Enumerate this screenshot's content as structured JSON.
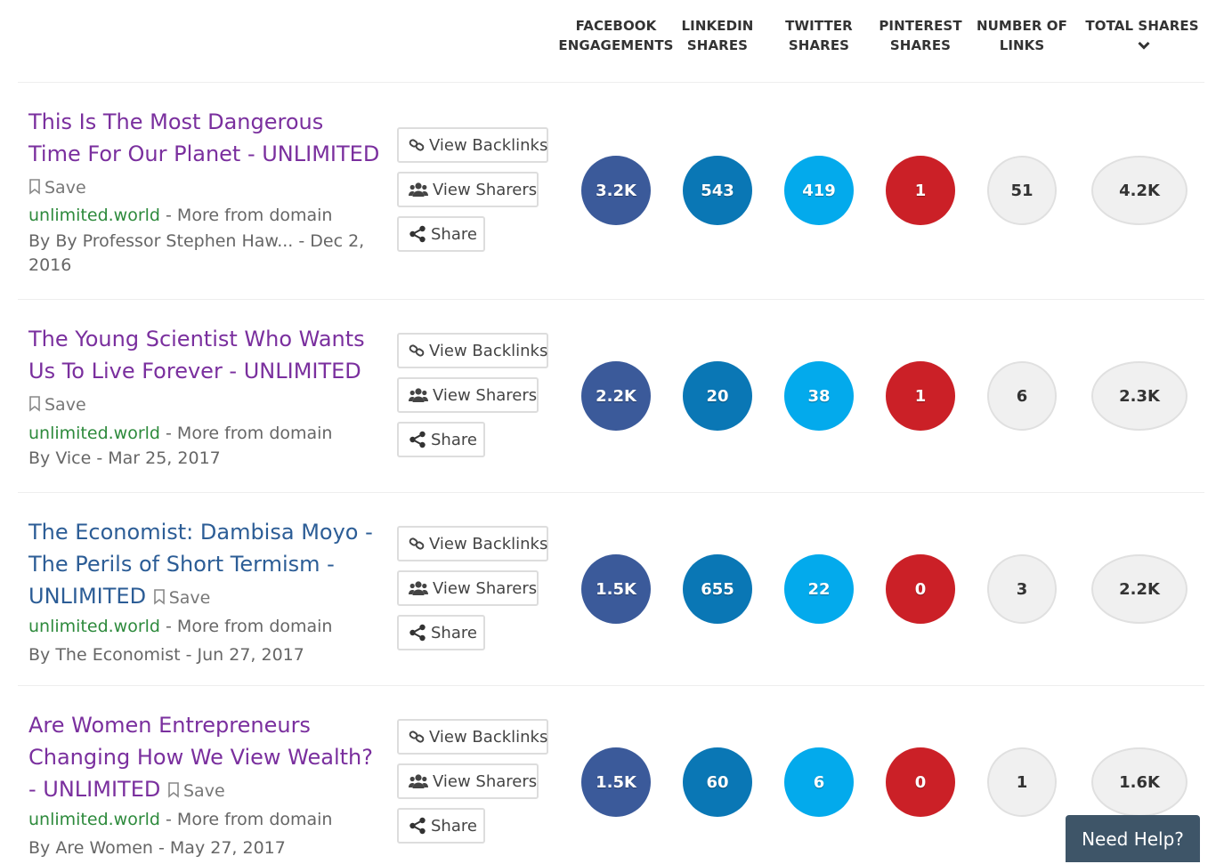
{
  "colors": {
    "facebook": "#3b5a9a",
    "linkedin": "#0a77b5",
    "twitter": "#03aaec",
    "pinterest": "#cb2027",
    "links": "#f0f0f0",
    "total": "#f0f0f0"
  },
  "columns": [
    {
      "key": "facebook",
      "line1": "FACEBOOK",
      "line2": "ENGAGEMENTS"
    },
    {
      "key": "linkedin",
      "line1": "LINKEDIN",
      "line2": "SHARES"
    },
    {
      "key": "twitter",
      "line1": "TWITTER",
      "line2": "SHARES"
    },
    {
      "key": "pinterest",
      "line1": "PINTEREST",
      "line2": "SHARES"
    },
    {
      "key": "links",
      "line1": "NUMBER OF",
      "line2": "LINKS"
    },
    {
      "key": "total",
      "line1": "TOTAL SHARES",
      "line2": "",
      "icon": "chevron-down-icon"
    }
  ],
  "labels": {
    "save": "Save",
    "more_from_domain": "More from domain",
    "view_backlinks": "View Backlinks",
    "view_sharers": "View Sharers",
    "share": "Share",
    "need_help": "Need Help?"
  },
  "icons": {
    "save": "bookmark-icon",
    "view_backlinks": "link-icon",
    "view_sharers": "users-icon",
    "share": "share-icon"
  },
  "articles": [
    {
      "title": "This Is The Most Dangerous Time For Our Planet - UNLIMITED",
      "visited": true,
      "domain": "unlimited.world",
      "byline": "By By Professor Stephen Haw... - Dec 2, 2016",
      "facebook": "3.2K",
      "linkedin": "543",
      "twitter": "419",
      "pinterest": "1",
      "links": "51",
      "total": "4.2K"
    },
    {
      "title": "The Young Scientist Who Wants Us To Live Forever - UNLIMITED",
      "visited": true,
      "domain": "unlimited.world",
      "byline": "By Vice - Mar 25, 2017",
      "facebook": "2.2K",
      "linkedin": "20",
      "twitter": "38",
      "pinterest": "1",
      "links": "6",
      "total": "2.3K"
    },
    {
      "title": "The Economist: Dambisa Moyo - The Perils of Short Termism - UNLIMITED",
      "visited": false,
      "domain": "unlimited.world",
      "byline": "By The Economist - Jun 27, 2017",
      "facebook": "1.5K",
      "linkedin": "655",
      "twitter": "22",
      "pinterest": "0",
      "links": "3",
      "total": "2.2K"
    },
    {
      "title": "Are Women Entrepreneurs Changing How We View Wealth? - UNLIMITED",
      "visited": true,
      "domain": "unlimited.world",
      "byline": "By Are Women - May 27, 2017",
      "facebook": "1.5K",
      "linkedin": "60",
      "twitter": "6",
      "pinterest": "0",
      "links": "1",
      "total": "1.6K"
    }
  ]
}
